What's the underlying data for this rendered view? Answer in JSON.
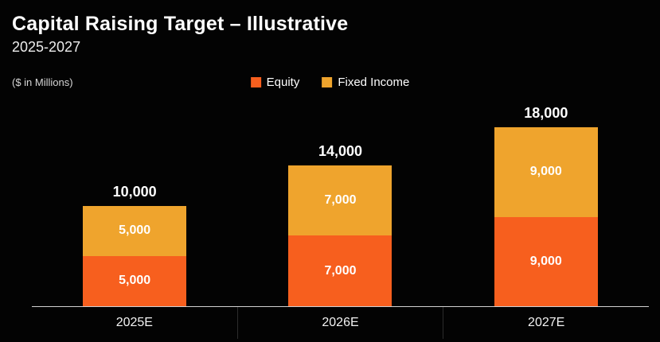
{
  "header": {
    "title": "Capital Raising Target – Illustrative",
    "subtitle": "2025-2027",
    "units": "($ in Millions)"
  },
  "legend": [
    {
      "label": "Equity",
      "color": "#f75f1e"
    },
    {
      "label": "Fixed Income",
      "color": "#efa42d"
    }
  ],
  "chart_data": {
    "type": "bar",
    "stacked": true,
    "title": "Capital Raising Target – Illustrative",
    "subtitle": "2025-2027",
    "units": "($ in Millions)",
    "categories": [
      "2025E",
      "2026E",
      "2027E"
    ],
    "series": [
      {
        "name": "Equity",
        "color": "#f75f1e",
        "values": [
          5000,
          7000,
          9000
        ]
      },
      {
        "name": "Fixed Income",
        "color": "#efa42d",
        "values": [
          5000,
          7000,
          9000
        ]
      }
    ],
    "totals": [
      10000,
      14000,
      18000
    ],
    "total_labels": [
      "10,000",
      "14,000",
      "18,000"
    ],
    "segment_labels": [
      [
        "5,000",
        "5,000"
      ],
      [
        "7,000",
        "7,000"
      ],
      [
        "9,000",
        "9,000"
      ]
    ],
    "ylim": [
      0,
      20000
    ],
    "grid": false,
    "legend_position": "top-center",
    "background": "#030303"
  }
}
